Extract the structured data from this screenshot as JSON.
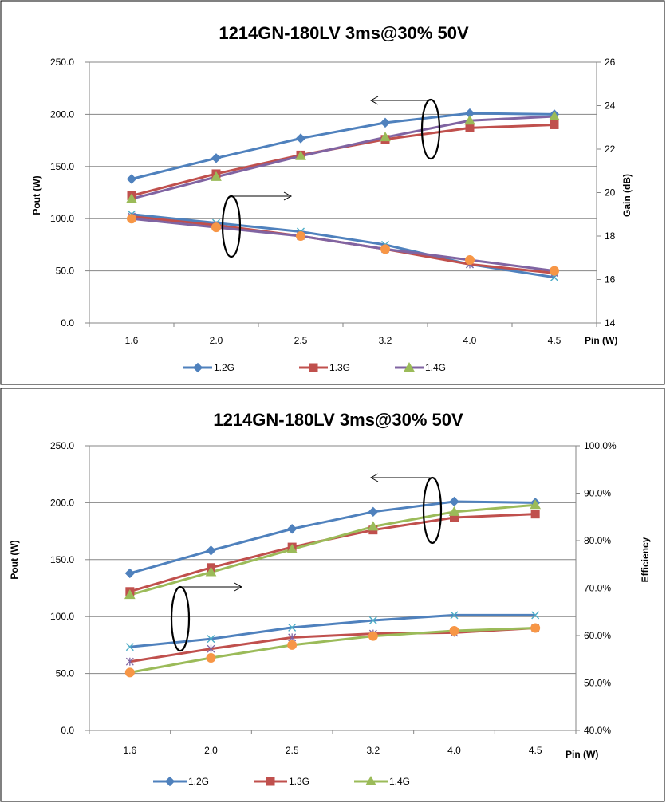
{
  "chart_data": [
    {
      "type": "line",
      "title": "1214GN-180LV   3ms@30%  50V",
      "categories": [
        "1.6",
        "2.0",
        "2.5",
        "3.2",
        "4.0",
        "4.5"
      ],
      "xlabel": "Pin (W)",
      "ylabel": "Pout (W)",
      "y2label": "Gain (dB)",
      "ylim": [
        0,
        250
      ],
      "yticks": [
        "0.0",
        "50.0",
        "100.0",
        "150.0",
        "200.0",
        "250.0"
      ],
      "y2lim": [
        14,
        26
      ],
      "y2ticks": [
        "14",
        "16",
        "18",
        "20",
        "22",
        "24",
        "26"
      ],
      "grid": true,
      "legend_position": "bottom",
      "series": [
        {
          "name": "1.2G",
          "axis": "left",
          "color": "#4F81BD",
          "marker": "diamond",
          "values": [
            138,
            158,
            177,
            192,
            201,
            200
          ]
        },
        {
          "name": "1.3G",
          "axis": "left",
          "color": "#C0504D",
          "marker": "square",
          "values": [
            122,
            143,
            161,
            176,
            187,
            190
          ]
        },
        {
          "name": "1.4G",
          "axis": "left",
          "color": "#8064A2",
          "marker": "triangle",
          "marker_color": "#9BBB59",
          "values": [
            119,
            140,
            160,
            178,
            194,
            198
          ]
        },
        {
          "axis": "right",
          "color": "#4F81BD",
          "marker": "x",
          "values": [
            19.0,
            18.6,
            18.2,
            17.6,
            16.7,
            16.1
          ]
        },
        {
          "axis": "right",
          "color": "#C0504D",
          "marker": "star",
          "values": [
            18.9,
            18.5,
            18.0,
            17.4,
            16.7,
            16.3
          ]
        },
        {
          "axis": "right",
          "color": "#8064A2",
          "marker": "circle",
          "marker_color": "#F79646",
          "values": [
            18.8,
            18.4,
            18.0,
            17.4,
            16.9,
            16.4
          ]
        }
      ]
    },
    {
      "type": "line",
      "title": "1214GN-180LV 3ms@30% 50V",
      "categories": [
        "1.6",
        "2.0",
        "2.5",
        "3.2",
        "4.0",
        "4.5"
      ],
      "xlabel": "Pin (W)",
      "ylabel": "Pout (W)",
      "y2label": "Efficiency",
      "ylim": [
        0,
        250
      ],
      "yticks": [
        "0.0",
        "50.0",
        "100.0",
        "150.0",
        "200.0",
        "250.0"
      ],
      "y2lim": [
        40,
        100
      ],
      "y2ticks": [
        "40.0%",
        "50.0%",
        "60.0%",
        "70.0%",
        "80.0%",
        "90.0%",
        "100.0%"
      ],
      "grid": true,
      "legend_position": "bottom",
      "series": [
        {
          "name": "1.2G",
          "axis": "left",
          "color": "#4F81BD",
          "marker": "diamond",
          "values": [
            138,
            158,
            177,
            192,
            201,
            200
          ]
        },
        {
          "name": "1.3G",
          "axis": "left",
          "color": "#C0504D",
          "marker": "square",
          "values": [
            122,
            143,
            161,
            176,
            187,
            190
          ]
        },
        {
          "name": "1.4G",
          "axis": "left",
          "color": "#9BBB59",
          "marker": "triangle",
          "values": [
            119,
            139,
            159,
            179,
            192,
            198
          ]
        },
        {
          "axis": "right",
          "color": "#4F81BD",
          "marker": "x",
          "values": [
            57.6,
            59.3,
            61.7,
            63.2,
            64.3,
            64.3
          ]
        },
        {
          "axis": "right",
          "color": "#C0504D",
          "marker": "star",
          "values": [
            54.5,
            57.2,
            59.6,
            60.4,
            60.6,
            61.6
          ]
        },
        {
          "axis": "right",
          "color": "#9BBB59",
          "marker": "circle",
          "marker_color": "#F79646",
          "values": [
            52.2,
            55.3,
            58.0,
            59.9,
            61.0,
            61.6
          ]
        }
      ]
    }
  ]
}
